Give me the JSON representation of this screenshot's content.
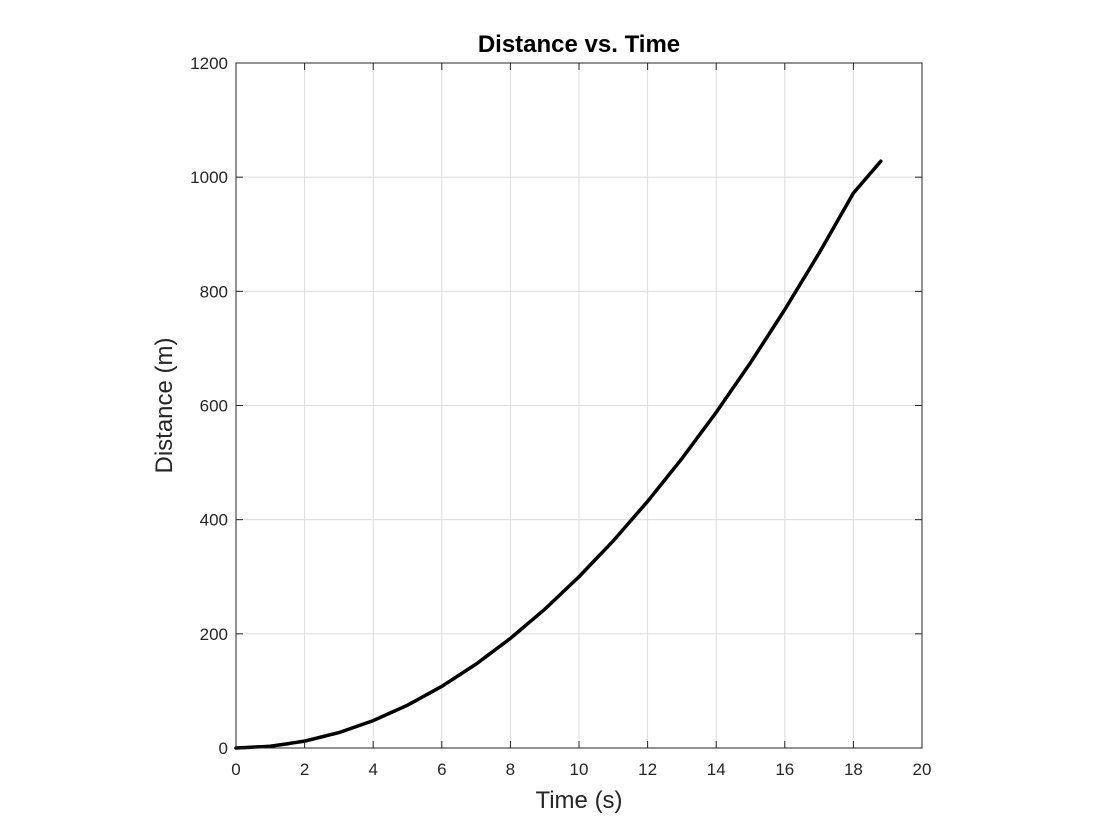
{
  "chart_data": {
    "type": "line",
    "title": "Distance vs. Time",
    "xlabel": "Time (s)",
    "ylabel": "Distance (m)",
    "xlim": [
      0,
      20
    ],
    "ylim": [
      0,
      1200
    ],
    "xticks": [
      0,
      2,
      4,
      6,
      8,
      10,
      12,
      14,
      16,
      18,
      20
    ],
    "yticks": [
      0,
      200,
      400,
      600,
      800,
      1000,
      1200
    ],
    "grid": true,
    "series": [
      {
        "color": "#000000",
        "x": [
          0,
          1,
          2,
          3,
          4,
          5,
          6,
          7,
          8,
          9,
          10,
          11,
          12,
          13,
          14,
          15,
          16,
          17,
          18,
          18.8
        ],
        "y": [
          0,
          3,
          12,
          27,
          48,
          75,
          108,
          147,
          192,
          243,
          300,
          363,
          432,
          507,
          588,
          675,
          768,
          867,
          972,
          1028
        ]
      }
    ]
  }
}
